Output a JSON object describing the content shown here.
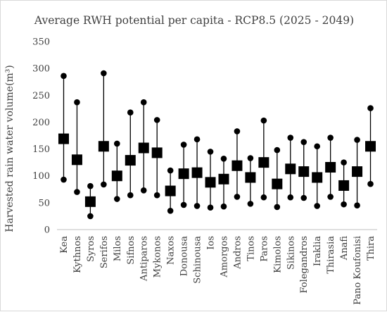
{
  "chart_data": {
    "type": "scatter",
    "subtype": "high-low-mean",
    "title": "Average RWH potential per capita - RCP8.5 (2025 - 2049)",
    "ylabel": "Harvested rain water volume(m³)",
    "xlabel": "",
    "ylim": [
      0,
      350
    ],
    "yticks": [
      0,
      50,
      100,
      150,
      200,
      250,
      300,
      350
    ],
    "grid": false,
    "legend": "none",
    "categories": [
      "Kea",
      "Kythnos",
      "Syros",
      "Serifos",
      "Milos",
      "Sifnos",
      "Antiparos",
      "Mykonos",
      "Naxos",
      "Donousa",
      "Schinousa",
      "Ios",
      "Amorgos",
      "Andros",
      "Tinos",
      "Paros",
      "Kimolos",
      "Sikinos",
      "Folegandros",
      "Iraklia",
      "Thirasia",
      "Anafi",
      "Pano Koufonisi",
      "Thira"
    ],
    "series": [
      {
        "values": [
          286,
          237,
          81,
          291,
          160,
          218,
          237,
          204,
          110,
          158,
          168,
          145,
          132,
          183,
          133,
          203,
          148,
          171,
          163,
          155,
          171,
          125,
          167,
          226
        ]
      },
      {
        "values": [
          169,
          130,
          52,
          155,
          100,
          129,
          152,
          143,
          72,
          104,
          106,
          88,
          94,
          119,
          97,
          125,
          85,
          113,
          108,
          97,
          116,
          82,
          108,
          155
        ]
      },
      {
        "values": [
          93,
          70,
          25,
          84,
          57,
          64,
          73,
          64,
          35,
          46,
          44,
          41,
          43,
          61,
          48,
          60,
          42,
          60,
          59,
          44,
          61,
          47,
          45,
          85
        ]
      }
    ],
    "colors": {
      "marker": "#000000",
      "axis": "#bfbfbf",
      "text": "#404040"
    }
  }
}
